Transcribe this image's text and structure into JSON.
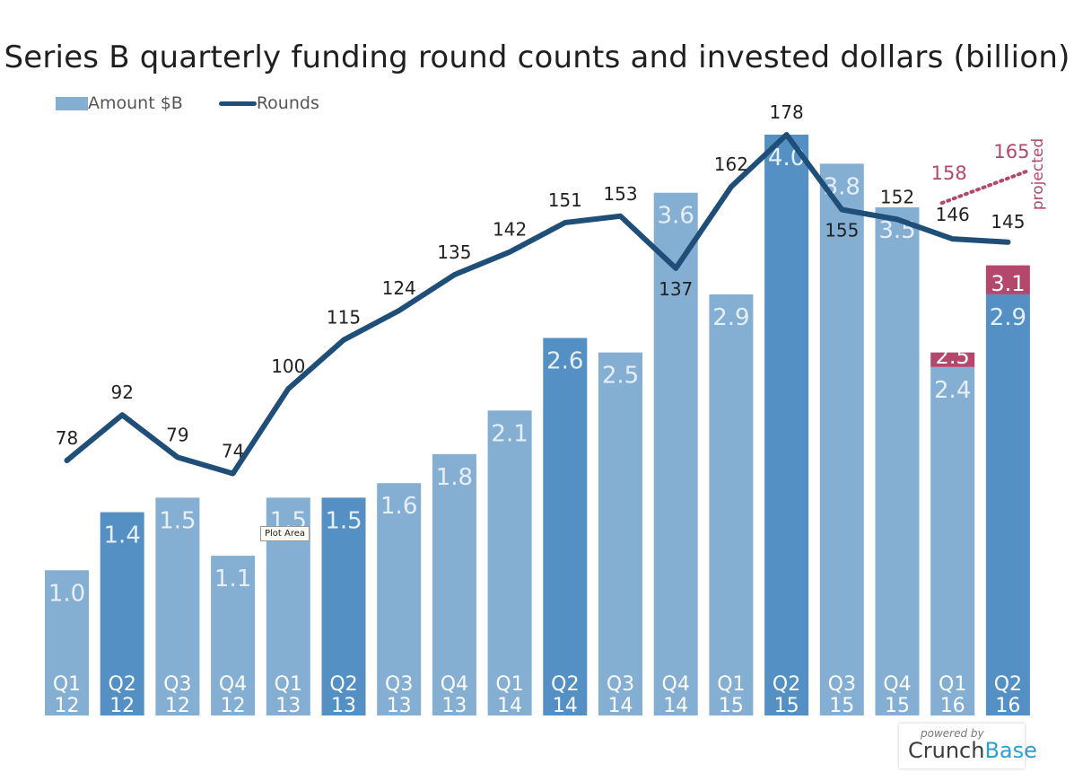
{
  "chart_data": {
    "type": "bar",
    "title": "Series B quarterly funding round counts and invested dollars (billion)",
    "categories": [
      {
        "q": "Q1",
        "y": "12"
      },
      {
        "q": "Q2",
        "y": "12"
      },
      {
        "q": "Q3",
        "y": "12"
      },
      {
        "q": "Q4",
        "y": "12"
      },
      {
        "q": "Q1",
        "y": "13"
      },
      {
        "q": "Q2",
        "y": "13"
      },
      {
        "q": "Q3",
        "y": "13"
      },
      {
        "q": "Q4",
        "y": "13"
      },
      {
        "q": "Q1",
        "y": "14"
      },
      {
        "q": "Q2",
        "y": "14"
      },
      {
        "q": "Q3",
        "y": "14"
      },
      {
        "q": "Q4",
        "y": "14"
      },
      {
        "q": "Q1",
        "y": "15"
      },
      {
        "q": "Q2",
        "y": "15"
      },
      {
        "q": "Q3",
        "y": "15"
      },
      {
        "q": "Q4",
        "y": "15"
      },
      {
        "q": "Q1",
        "y": "16"
      },
      {
        "q": "Q2",
        "y": "16"
      }
    ],
    "series": [
      {
        "name": "Amount $B",
        "kind": "bar",
        "values": [
          1.0,
          1.4,
          1.5,
          1.1,
          1.5,
          1.5,
          1.6,
          1.8,
          2.1,
          2.6,
          2.5,
          3.6,
          2.9,
          4.0,
          3.8,
          3.5,
          2.4,
          2.9
        ],
        "labels": [
          "1.0",
          "1.4",
          "1.5",
          "1.1",
          "1.5",
          "1.5",
          "1.6",
          "1.8",
          "2.1",
          "2.6",
          "2.5",
          "3.6",
          "2.9",
          "4.0",
          "3.8",
          "3.5",
          "2.4",
          "2.9"
        ]
      },
      {
        "name": "Rounds",
        "kind": "line",
        "values": [
          78,
          92,
          79,
          74,
          100,
          115,
          124,
          135,
          142,
          151,
          153,
          137,
          162,
          178,
          155,
          152,
          146,
          145
        ],
        "labels": [
          "78",
          "92",
          "79",
          "74",
          "100",
          "115",
          "124",
          "135",
          "142",
          "151",
          "153",
          "137",
          "162",
          "178",
          "155",
          "152",
          "146",
          "145"
        ]
      }
    ],
    "projected": {
      "label": "projected",
      "amount": {
        "indices": [
          16,
          17
        ],
        "values": [
          2.5,
          3.1
        ],
        "labels": [
          "2.5",
          "3.1"
        ]
      },
      "rounds": {
        "indices": [
          16,
          17
        ],
        "values": [
          158,
          165
        ],
        "labels": [
          "158",
          "165"
        ]
      }
    },
    "highlight_indices": [
      1,
      5,
      9,
      13,
      17
    ],
    "ylim_amount": [
      0,
      4.2
    ],
    "ylim_rounds": [
      0,
      180
    ],
    "legend_position": "top-left",
    "grid": false,
    "colors": {
      "bar": "#85aed3",
      "bar_highlight": "#5590c4",
      "line": "#1f4e79",
      "projected": "#b3476c"
    }
  },
  "tooltip": "Plot Area",
  "branding": {
    "powered_by": "powered by",
    "brand_part1": "Crunch",
    "brand_part2": "Base"
  }
}
